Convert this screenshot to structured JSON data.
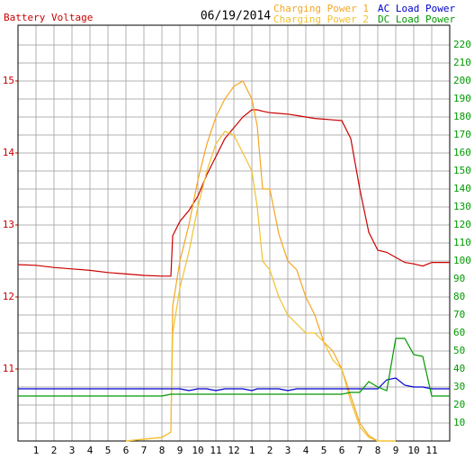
{
  "chart_data": {
    "type": "line",
    "title": "06/19/2014",
    "x": [
      0,
      1,
      2,
      3,
      4,
      5,
      6,
      7,
      8,
      8.5,
      8.6,
      9,
      9.5,
      10,
      10.5,
      11,
      11.5,
      12,
      12.5,
      13,
      13.3,
      13.6,
      14,
      14.5,
      15,
      15.5,
      16,
      16.5,
      17,
      17.5,
      18,
      18.5,
      19,
      19.5,
      20,
      20.5,
      21,
      21.5,
      22,
      22.5,
      23,
      24
    ],
    "xlim": [
      0,
      24
    ],
    "xticks": [
      1,
      2,
      3,
      4,
      5,
      6,
      7,
      8,
      9,
      10,
      11,
      12,
      {
        "value": 13,
        "label": "1"
      },
      {
        "value": 14,
        "label": "2"
      },
      {
        "value": 15,
        "label": "3"
      },
      {
        "value": 16,
        "label": "4"
      },
      {
        "value": 17,
        "label": "5"
      },
      {
        "value": 18,
        "label": "6"
      },
      {
        "value": 19,
        "label": "7"
      },
      {
        "value": 20,
        "label": "8"
      },
      {
        "value": 21,
        "label": "9"
      },
      {
        "value": 22,
        "label": "10"
      },
      {
        "value": 23,
        "label": "11"
      }
    ],
    "ylim": [
      10,
      15.775
    ],
    "yticks": [
      11,
      12,
      13,
      14,
      15
    ],
    "y2lim": [
      0,
      231
    ],
    "y2ticks": [
      10,
      20,
      30,
      40,
      50,
      60,
      70,
      80,
      90,
      100,
      110,
      120,
      130,
      140,
      150,
      160,
      170,
      180,
      190,
      200,
      210,
      220
    ],
    "grid": true,
    "series": [
      {
        "name": "Battery Voltage",
        "color": "#cc0000",
        "values": [
          12.45,
          12.44,
          12.41,
          12.39,
          12.37,
          12.34,
          12.32,
          12.3,
          12.29,
          12.29,
          12.85,
          13.05,
          13.2,
          13.4,
          13.7,
          13.95,
          14.2,
          14.35,
          14.5,
          14.6,
          14.6,
          14.58,
          14.56,
          14.55,
          14.54,
          14.52,
          14.5,
          14.48,
          14.47,
          14.46,
          14.45,
          14.2,
          13.5,
          12.9,
          12.65,
          12.62,
          12.55,
          12.48,
          12.46,
          12.43,
          12.48,
          12.48
        ]
      },
      {
        "name": "Charging Power 1",
        "color": "#f5a623",
        "axis": "y2",
        "values": [
          null,
          null,
          null,
          null,
          null,
          null,
          0,
          1,
          2,
          5,
          75,
          100,
          120,
          145,
          165,
          180,
          190,
          197,
          200,
          190,
          175,
          140,
          140,
          115,
          100,
          95,
          80,
          70,
          55,
          50,
          40,
          25,
          10,
          3,
          0,
          0,
          0,
          null,
          null,
          null,
          null,
          null
        ]
      },
      {
        "name": "Charging Power 2",
        "color": "#f2c12e",
        "axis": "y2",
        "values": [
          null,
          null,
          null,
          null,
          null,
          null,
          0,
          1,
          2,
          5,
          60,
          85,
          105,
          130,
          150,
          165,
          172,
          170,
          160,
          150,
          130,
          100,
          95,
          80,
          70,
          65,
          60,
          60,
          55,
          45,
          40,
          22,
          8,
          2,
          0,
          0,
          0,
          null,
          null,
          null,
          null,
          null
        ]
      },
      {
        "name": "AC Load Power",
        "color": "#0000cc",
        "axis": "y2",
        "values": [
          29,
          29,
          29,
          29,
          29,
          29,
          29,
          29,
          29,
          29,
          29,
          29,
          28,
          29,
          29,
          28,
          29,
          29,
          29,
          28,
          29,
          29,
          29,
          29,
          28,
          29,
          29,
          29,
          29,
          29,
          29,
          29,
          29,
          29,
          29,
          34,
          35,
          31,
          30,
          30,
          29,
          29
        ]
      },
      {
        "name": "DC Load Power",
        "color": "#009900",
        "axis": "y2",
        "values": [
          25,
          25,
          25,
          25,
          25,
          25,
          25,
          25,
          25,
          26,
          26,
          26,
          26,
          26,
          26,
          26,
          26,
          26,
          26,
          26,
          26,
          26,
          26,
          26,
          26,
          26,
          26,
          26,
          26,
          26,
          26,
          27,
          27,
          33,
          30,
          28,
          57,
          57,
          48,
          47,
          25,
          25
        ]
      }
    ]
  }
}
